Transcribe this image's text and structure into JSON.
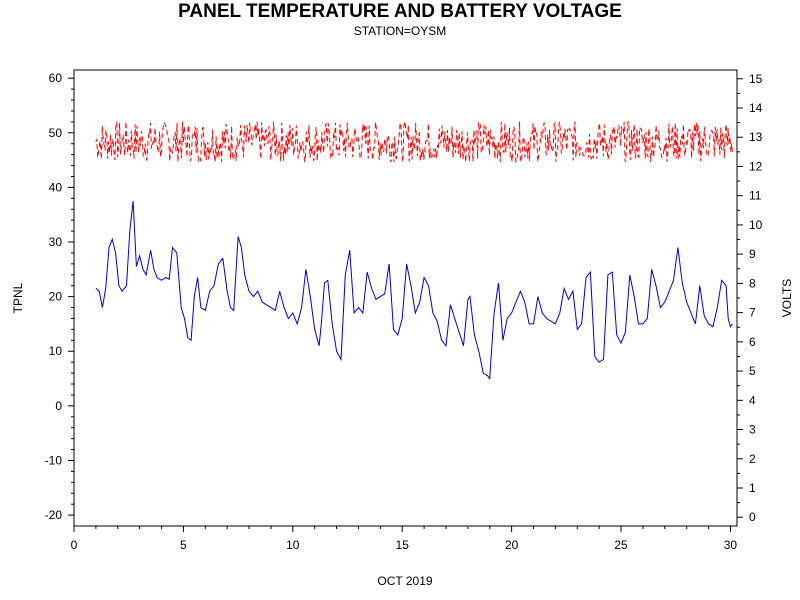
{
  "chart_data": {
    "type": "line",
    "title": "PANEL TEMPERATURE AND BATTERY VOLTAGE",
    "subtitle": "STATION=OYSM",
    "xlabel": "OCT 2019",
    "ylabel_left": "TPNL",
    "ylabel_right": "VOLTS",
    "xlim": [
      0,
      30.3
    ],
    "ylim_left": [
      -22,
      61.5
    ],
    "ylim_right": [
      -0.3,
      15.3
    ],
    "x_ticks": [
      "0",
      "5",
      "10",
      "15",
      "20",
      "25",
      "30"
    ],
    "y_left_ticks": [
      "-20",
      "-10",
      "0",
      "10",
      "20",
      "30",
      "40",
      "50",
      "60"
    ],
    "y_right_ticks": [
      "0",
      "1",
      "2",
      "3",
      "4",
      "5",
      "6",
      "7",
      "8",
      "9",
      "10",
      "11",
      "12",
      "13",
      "14",
      "15"
    ],
    "grid": false,
    "series": [
      {
        "axis": "left",
        "color": "#0000cc",
        "points": [
          [
            1.0,
            21.5
          ],
          [
            1.15,
            21.0
          ],
          [
            1.3,
            18.0
          ],
          [
            1.45,
            21.5
          ],
          [
            1.6,
            29.0
          ],
          [
            1.75,
            30.5
          ],
          [
            1.9,
            28.0
          ],
          [
            2.05,
            22.0
          ],
          [
            2.2,
            21.0
          ],
          [
            2.4,
            22.0
          ],
          [
            2.55,
            32.0
          ],
          [
            2.7,
            37.5
          ],
          [
            2.85,
            25.5
          ],
          [
            3.0,
            27.5
          ],
          [
            3.15,
            25.0
          ],
          [
            3.3,
            24.0
          ],
          [
            3.5,
            28.5
          ],
          [
            3.65,
            25.0
          ],
          [
            3.8,
            23.5
          ],
          [
            4.0,
            23.0
          ],
          [
            4.2,
            23.5
          ],
          [
            4.35,
            23.2
          ],
          [
            4.5,
            29.0
          ],
          [
            4.7,
            28.0
          ],
          [
            4.9,
            18.0
          ],
          [
            5.05,
            16.0
          ],
          [
            5.2,
            12.5
          ],
          [
            5.35,
            12.0
          ],
          [
            5.5,
            20.0
          ],
          [
            5.65,
            23.5
          ],
          [
            5.8,
            18.0
          ],
          [
            6.0,
            17.5
          ],
          [
            6.2,
            21.0
          ],
          [
            6.4,
            22.0
          ],
          [
            6.6,
            26.0
          ],
          [
            6.8,
            27.0
          ],
          [
            7.0,
            21.0
          ],
          [
            7.15,
            18.0
          ],
          [
            7.3,
            17.5
          ],
          [
            7.5,
            31.0
          ],
          [
            7.65,
            29.0
          ],
          [
            7.8,
            24.0
          ],
          [
            8.0,
            21.0
          ],
          [
            8.2,
            20.0
          ],
          [
            8.4,
            21.0
          ],
          [
            8.6,
            19.0
          ],
          [
            8.8,
            18.5
          ],
          [
            9.0,
            18.0
          ],
          [
            9.2,
            17.5
          ],
          [
            9.4,
            21.0
          ],
          [
            9.6,
            18.0
          ],
          [
            9.8,
            16.0
          ],
          [
            10.0,
            17.0
          ],
          [
            10.2,
            15.0
          ],
          [
            10.4,
            18.0
          ],
          [
            10.6,
            25.0
          ],
          [
            10.8,
            20.0
          ],
          [
            11.0,
            14.0
          ],
          [
            11.2,
            11.0
          ],
          [
            11.3,
            15.0
          ],
          [
            11.45,
            22.5
          ],
          [
            11.6,
            23.0
          ],
          [
            11.8,
            15.0
          ],
          [
            12.0,
            10.0
          ],
          [
            12.2,
            8.5
          ],
          [
            12.4,
            24.0
          ],
          [
            12.6,
            28.5
          ],
          [
            12.8,
            17.0
          ],
          [
            13.0,
            18.0
          ],
          [
            13.2,
            17.0
          ],
          [
            13.4,
            24.5
          ],
          [
            13.6,
            21.5
          ],
          [
            13.8,
            19.5
          ],
          [
            14.0,
            20.0
          ],
          [
            14.2,
            20.5
          ],
          [
            14.4,
            26.0
          ],
          [
            14.6,
            14.0
          ],
          [
            14.8,
            13.0
          ],
          [
            15.0,
            16.0
          ],
          [
            15.2,
            26.0
          ],
          [
            15.4,
            22.0
          ],
          [
            15.6,
            17.0
          ],
          [
            15.8,
            19.0
          ],
          [
            16.0,
            23.5
          ],
          [
            16.2,
            22.0
          ],
          [
            16.4,
            17.0
          ],
          [
            16.6,
            15.5
          ],
          [
            16.8,
            12.0
          ],
          [
            17.0,
            11.0
          ],
          [
            17.2,
            18.5
          ],
          [
            17.4,
            16.0
          ],
          [
            17.6,
            13.5
          ],
          [
            17.8,
            11.0
          ],
          [
            18.0,
            19.5
          ],
          [
            18.1,
            20.0
          ],
          [
            18.3,
            13.0
          ],
          [
            18.5,
            10.0
          ],
          [
            18.7,
            6.0
          ],
          [
            18.9,
            5.5
          ],
          [
            19.0,
            5.0
          ],
          [
            19.2,
            17.0
          ],
          [
            19.4,
            22.5
          ],
          [
            19.6,
            12.0
          ],
          [
            19.8,
            16.0
          ],
          [
            20.0,
            17.0
          ],
          [
            20.2,
            19.0
          ],
          [
            20.4,
            21.0
          ],
          [
            20.6,
            19.0
          ],
          [
            20.8,
            15.0
          ],
          [
            21.0,
            15.0
          ],
          [
            21.2,
            20.0
          ],
          [
            21.4,
            17.0
          ],
          [
            21.6,
            16.0
          ],
          [
            21.8,
            15.5
          ],
          [
            22.0,
            15.0
          ],
          [
            22.2,
            17.0
          ],
          [
            22.4,
            21.5
          ],
          [
            22.6,
            19.5
          ],
          [
            22.8,
            21.0
          ],
          [
            23.0,
            14.0
          ],
          [
            23.2,
            15.0
          ],
          [
            23.4,
            23.5
          ],
          [
            23.6,
            24.5
          ],
          [
            23.8,
            9.0
          ],
          [
            24.0,
            8.0
          ],
          [
            24.2,
            8.5
          ],
          [
            24.4,
            24.0
          ],
          [
            24.6,
            24.5
          ],
          [
            24.8,
            13.0
          ],
          [
            25.0,
            11.5
          ],
          [
            25.2,
            13.5
          ],
          [
            25.4,
            24.0
          ],
          [
            25.6,
            20.0
          ],
          [
            25.8,
            15.0
          ],
          [
            26.0,
            15.0
          ],
          [
            26.2,
            16.0
          ],
          [
            26.4,
            25.0
          ],
          [
            26.6,
            22.0
          ],
          [
            26.8,
            18.0
          ],
          [
            27.0,
            19.0
          ],
          [
            27.2,
            21.0
          ],
          [
            27.4,
            23.0
          ],
          [
            27.6,
            29.0
          ],
          [
            27.8,
            22.5
          ],
          [
            28.0,
            19.0
          ],
          [
            28.2,
            17.0
          ],
          [
            28.4,
            15.0
          ],
          [
            28.6,
            22.0
          ],
          [
            28.8,
            16.5
          ],
          [
            29.0,
            15.0
          ],
          [
            29.2,
            14.5
          ],
          [
            29.4,
            18.0
          ],
          [
            29.6,
            23.0
          ],
          [
            29.8,
            22.0
          ],
          [
            29.9,
            16.0
          ],
          [
            30.0,
            14.5
          ],
          [
            30.1,
            15.0
          ]
        ]
      },
      {
        "axis": "right",
        "color": "#ff0000",
        "style": "dashed",
        "range": [
          12.15,
          13.55
        ],
        "x_start": 1.0,
        "x_end": 30.1,
        "count": 700
      }
    ]
  }
}
